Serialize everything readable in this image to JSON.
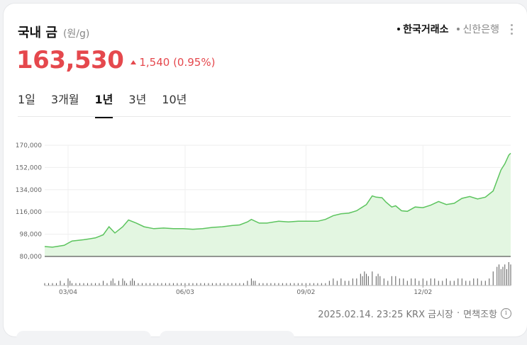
{
  "header": {
    "title": "국내 금",
    "unit": "(원/g)",
    "sources": [
      {
        "label": "한국거래소",
        "active": true
      },
      {
        "label": "신한은행",
        "active": false
      }
    ]
  },
  "price": {
    "value": "163,530",
    "change": "1,540 (0.95%)",
    "direction": "up",
    "color": "#e5484d"
  },
  "tabs": [
    {
      "label": "1일",
      "active": false
    },
    {
      "label": "3개월",
      "active": false
    },
    {
      "label": "1년",
      "active": true
    },
    {
      "label": "3년",
      "active": false
    },
    {
      "label": "10년",
      "active": false
    }
  ],
  "footer": {
    "timestamp": "2025.02.14. 23:25 KRX 금시장",
    "disclaimer": "면책조항",
    "info_icon": "info-icon"
  },
  "chart_data": {
    "type": "area",
    "line_color": "#5cc45e",
    "fill_color": "#e3f6e1",
    "ylim": [
      80000,
      170000
    ],
    "y_ticks": [
      80000,
      98000,
      116000,
      134000,
      152000,
      170000
    ],
    "y_tick_labels": [
      "80,000",
      "98,000",
      "116,000",
      "134,000",
      "152,000",
      "170,000"
    ],
    "x_tick_labels": [
      {
        "label": "03/04",
        "index": 12
      },
      {
        "label": "06/03",
        "index": 72
      },
      {
        "label": "09/02",
        "index": 134
      },
      {
        "label": "12/02",
        "index": 194
      }
    ],
    "n_points": 240,
    "series": [
      {
        "points": [
          [
            0,
            88000
          ],
          [
            4,
            87500
          ],
          [
            10,
            89000
          ],
          [
            14,
            92500
          ],
          [
            20,
            93500
          ],
          [
            26,
            95000
          ],
          [
            30,
            97500
          ],
          [
            33,
            104000
          ],
          [
            36,
            99000
          ],
          [
            40,
            104000
          ],
          [
            43,
            109500
          ],
          [
            47,
            107000
          ],
          [
            51,
            104000
          ],
          [
            56,
            102500
          ],
          [
            61,
            103000
          ],
          [
            66,
            102500
          ],
          [
            71,
            102500
          ],
          [
            76,
            102000
          ],
          [
            81,
            102500
          ],
          [
            86,
            103500
          ],
          [
            91,
            104000
          ],
          [
            96,
            105000
          ],
          [
            100,
            105500
          ],
          [
            104,
            108000
          ],
          [
            106,
            110000
          ],
          [
            110,
            107000
          ],
          [
            114,
            107000
          ],
          [
            120,
            108500
          ],
          [
            125,
            108000
          ],
          [
            130,
            108500
          ],
          [
            135,
            108500
          ],
          [
            140,
            108500
          ],
          [
            144,
            110000
          ],
          [
            148,
            113000
          ],
          [
            152,
            114500
          ],
          [
            156,
            115000
          ],
          [
            160,
            117000
          ],
          [
            165,
            122000
          ],
          [
            168,
            129000
          ],
          [
            170,
            128000
          ],
          [
            173,
            127500
          ],
          [
            175,
            124000
          ],
          [
            178,
            120000
          ],
          [
            180,
            121000
          ],
          [
            183,
            117000
          ],
          [
            186,
            116500
          ],
          [
            190,
            120000
          ],
          [
            194,
            119500
          ],
          [
            198,
            121500
          ],
          [
            202,
            124500
          ],
          [
            206,
            122000
          ],
          [
            210,
            123000
          ],
          [
            214,
            127000
          ],
          [
            218,
            128500
          ],
          [
            222,
            126500
          ],
          [
            226,
            128000
          ],
          [
            230,
            133000
          ],
          [
            234,
            150000
          ],
          [
            236,
            155000
          ],
          [
            238,
            162000
          ],
          [
            239,
            163530
          ]
        ]
      }
    ],
    "volume": {
      "color": "#5a5a5a",
      "bars": [
        [
          0,
          1
        ],
        [
          2,
          1
        ],
        [
          4,
          1
        ],
        [
          6,
          1
        ],
        [
          8,
          2
        ],
        [
          10,
          1
        ],
        [
          12,
          3
        ],
        [
          13,
          2
        ],
        [
          14,
          1
        ],
        [
          16,
          1
        ],
        [
          18,
          1
        ],
        [
          20,
          1
        ],
        [
          22,
          1
        ],
        [
          24,
          1
        ],
        [
          26,
          1
        ],
        [
          28,
          1
        ],
        [
          30,
          2
        ],
        [
          32,
          1
        ],
        [
          34,
          2
        ],
        [
          35,
          3
        ],
        [
          36,
          1
        ],
        [
          38,
          2
        ],
        [
          40,
          3
        ],
        [
          41,
          2
        ],
        [
          42,
          1
        ],
        [
          44,
          2
        ],
        [
          45,
          3
        ],
        [
          46,
          2
        ],
        [
          48,
          1
        ],
        [
          50,
          1
        ],
        [
          52,
          1
        ],
        [
          54,
          1
        ],
        [
          56,
          1
        ],
        [
          58,
          1
        ],
        [
          60,
          1
        ],
        [
          62,
          1
        ],
        [
          64,
          1
        ],
        [
          66,
          1
        ],
        [
          68,
          1
        ],
        [
          70,
          1
        ],
        [
          72,
          1
        ],
        [
          74,
          1
        ],
        [
          76,
          1
        ],
        [
          78,
          1
        ],
        [
          80,
          1
        ],
        [
          82,
          1
        ],
        [
          84,
          1
        ],
        [
          86,
          1
        ],
        [
          88,
          1
        ],
        [
          90,
          1
        ],
        [
          92,
          1
        ],
        [
          94,
          1
        ],
        [
          96,
          1
        ],
        [
          98,
          1
        ],
        [
          100,
          1
        ],
        [
          102,
          1
        ],
        [
          104,
          2
        ],
        [
          106,
          3
        ],
        [
          107,
          2
        ],
        [
          108,
          2
        ],
        [
          110,
          1
        ],
        [
          112,
          1
        ],
        [
          114,
          1
        ],
        [
          116,
          1
        ],
        [
          118,
          1
        ],
        [
          120,
          1
        ],
        [
          122,
          1
        ],
        [
          124,
          1
        ],
        [
          126,
          1
        ],
        [
          128,
          1
        ],
        [
          130,
          1
        ],
        [
          132,
          1
        ],
        [
          134,
          1
        ],
        [
          136,
          1
        ],
        [
          138,
          1
        ],
        [
          140,
          1
        ],
        [
          142,
          1
        ],
        [
          144,
          1
        ],
        [
          146,
          2
        ],
        [
          148,
          3
        ],
        [
          150,
          2
        ],
        [
          152,
          3
        ],
        [
          154,
          2
        ],
        [
          156,
          2
        ],
        [
          158,
          3
        ],
        [
          160,
          3
        ],
        [
          162,
          5
        ],
        [
          163,
          4
        ],
        [
          164,
          6
        ],
        [
          165,
          5
        ],
        [
          166,
          4
        ],
        [
          168,
          6
        ],
        [
          170,
          4
        ],
        [
          171,
          5
        ],
        [
          172,
          4
        ],
        [
          174,
          3
        ],
        [
          176,
          2
        ],
        [
          178,
          4
        ],
        [
          180,
          4
        ],
        [
          182,
          3
        ],
        [
          184,
          3
        ],
        [
          186,
          2
        ],
        [
          188,
          3
        ],
        [
          190,
          3
        ],
        [
          192,
          2
        ],
        [
          194,
          3
        ],
        [
          196,
          2
        ],
        [
          198,
          3
        ],
        [
          200,
          3
        ],
        [
          202,
          2
        ],
        [
          204,
          2
        ],
        [
          206,
          3
        ],
        [
          208,
          2
        ],
        [
          210,
          2
        ],
        [
          212,
          3
        ],
        [
          214,
          3
        ],
        [
          216,
          2
        ],
        [
          218,
          2
        ],
        [
          220,
          3
        ],
        [
          222,
          3
        ],
        [
          224,
          2
        ],
        [
          226,
          2
        ],
        [
          228,
          3
        ],
        [
          230,
          6
        ],
        [
          232,
          8
        ],
        [
          233,
          9
        ],
        [
          234,
          7
        ],
        [
          235,
          8
        ],
        [
          236,
          9
        ],
        [
          237,
          7
        ],
        [
          238,
          10
        ],
        [
          239,
          9
        ]
      ]
    }
  }
}
